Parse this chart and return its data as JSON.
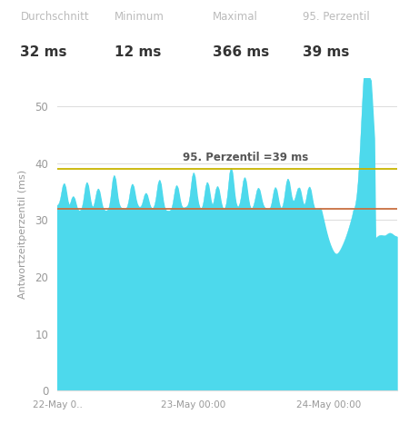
{
  "title_stats": [
    {
      "label": "Durchschnitt",
      "value": "32 ms"
    },
    {
      "label": "Minimum",
      "value": "12 ms"
    },
    {
      "label": "Maximal",
      "value": "366 ms"
    },
    {
      "label": "95. Perzentil",
      "value": "39 ms"
    }
  ],
  "ylabel": "Antwortzeitperzentil (ms)",
  "ylim": [
    0,
    55
  ],
  "yticks": [
    0,
    10,
    20,
    30,
    40,
    50
  ],
  "avg_line": 32,
  "percentile_95_line": 39,
  "percentile_label": "95. Perzentil =39 ms",
  "area_color": "#4DD9EC",
  "area_alpha": 1.0,
  "avg_line_color": "#C87040",
  "percentile_line_color": "#C8B400",
  "background_color": "#FFFFFF",
  "grid_color": "#DEDEDE",
  "tick_label_color": "#999999",
  "stat_label_color": "#BBBBBB",
  "stat_value_color": "#333333",
  "xtick_labels": [
    "22-May 0..",
    "23-May 00:00",
    "24-May 00:00"
  ],
  "num_points": 300,
  "seed": 42
}
